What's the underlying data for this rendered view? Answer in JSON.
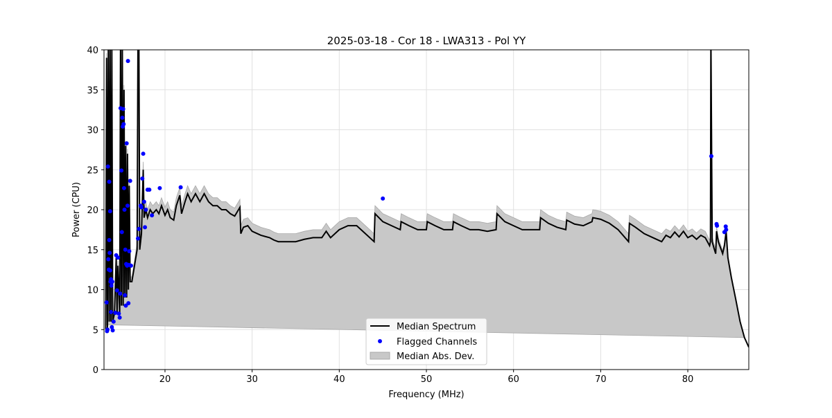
{
  "chart_data": {
    "type": "line",
    "title": "2025-03-18 - Cor 18 - LWA313 - Pol YY",
    "xlabel": "Frequency (MHz)",
    "ylabel": "Power (CPU)",
    "xlim": [
      13.0,
      87.0
    ],
    "ylim": [
      0,
      40
    ],
    "xticks": [
      20,
      30,
      40,
      50,
      60,
      70,
      80
    ],
    "yticks": [
      0,
      5,
      10,
      15,
      20,
      25,
      30,
      35,
      40
    ],
    "grid": true,
    "legend": {
      "placement": "bottom-center",
      "entries": [
        "Median Spectrum",
        "Flagged Channels",
        "Median Abs. Dev."
      ]
    },
    "colors": {
      "median": "#000000",
      "flagged": "#0000ff",
      "mad": "#c8c8c8"
    },
    "series": [
      {
        "name": "Median Spectrum",
        "freq": [
          13.2,
          13.3,
          13.4,
          13.5,
          13.6,
          13.7,
          13.8,
          13.9,
          14.0,
          14.2,
          14.4,
          14.5,
          14.6,
          14.8,
          14.9,
          15.0,
          15.1,
          15.2,
          15.3,
          15.4,
          15.5,
          15.6,
          15.7,
          15.8,
          15.9,
          16.0,
          16.2,
          16.5,
          16.8,
          16.9,
          17.0,
          17.1,
          17.3,
          17.5,
          17.6,
          17.8,
          18.0,
          18.3,
          18.6,
          19.0,
          19.3,
          19.6,
          20.0,
          20.3,
          20.6,
          21.0,
          21.3,
          21.7,
          21.9,
          22.3,
          22.6,
          23.0,
          23.5,
          24.0,
          24.5,
          25.0,
          25.5,
          26.0,
          26.5,
          27.0,
          27.5,
          28.0,
          28.6,
          28.7,
          29.0,
          29.5,
          30.0,
          31.0,
          32.0,
          32.5,
          33.0,
          34.0,
          35.0,
          36.0,
          37.0,
          38.0,
          38.5,
          39.0,
          40.0,
          41.0,
          42.0,
          43.0,
          44.0,
          44.1,
          45.0,
          46.0,
          47.0,
          47.1,
          48.0,
          49.0,
          50.0,
          50.1,
          51.0,
          52.0,
          53.0,
          53.1,
          54.0,
          55.0,
          56.0,
          57.0,
          58.0,
          58.1,
          59.0,
          60.0,
          61.0,
          62.0,
          63.0,
          63.1,
          64.0,
          65.0,
          66.0,
          66.1,
          67.0,
          68.0,
          69.0,
          69.1,
          70.0,
          71.0,
          72.0,
          73.2,
          73.3,
          74.0,
          75.0,
          76.0,
          77.0,
          77.5,
          78.0,
          78.5,
          79.0,
          79.5,
          80.0,
          80.5,
          81.0,
          81.5,
          82.0,
          82.5,
          82.6,
          82.65,
          82.8,
          83.0,
          83.2,
          83.3,
          83.5,
          84.0,
          84.2,
          84.4,
          84.6,
          85.0,
          85.5,
          86.0,
          86.5,
          87.0
        ],
        "median": [
          5,
          39,
          5,
          42,
          6,
          42,
          6,
          40,
          6,
          7,
          14,
          7,
          13,
          7,
          42,
          8,
          42,
          8,
          35,
          9,
          28,
          9,
          27,
          10,
          23,
          11,
          11,
          13,
          15,
          42,
          42,
          15,
          17,
          25,
          19,
          20,
          19,
          20,
          19.5,
          20,
          19.5,
          20.5,
          19.3,
          20,
          19,
          18.7,
          20.5,
          21.8,
          19.5,
          21,
          22,
          21,
          22,
          21,
          22,
          21,
          20.5,
          20.5,
          20,
          20,
          19.5,
          19.2,
          20.3,
          17,
          17.8,
          18,
          17.3,
          16.8,
          16.5,
          16.2,
          16,
          16,
          16,
          16.3,
          16.5,
          16.5,
          17.3,
          16.5,
          17.5,
          18,
          18,
          17,
          16,
          19.5,
          18.5,
          18,
          17.5,
          18.5,
          18,
          17.5,
          17.5,
          18.5,
          18,
          17.5,
          17.5,
          18.5,
          18,
          17.5,
          17.5,
          17.3,
          17.5,
          19.5,
          18.5,
          18,
          17.5,
          17.5,
          17.5,
          19,
          18.3,
          17.8,
          17.5,
          18.7,
          18.2,
          18,
          18.5,
          19,
          18.8,
          18.3,
          17.5,
          16,
          18.3,
          17.8,
          17,
          16.5,
          16,
          16.8,
          16.5,
          17.2,
          16.6,
          17.3,
          16.5,
          16.8,
          16.3,
          16.8,
          16.5,
          15.5,
          16,
          42,
          16,
          15.2,
          14.5,
          17.3,
          16,
          14.5,
          15.5,
          17.3,
          14,
          11.5,
          8.8,
          6,
          4,
          2.8
        ],
        "mad": [
          0.6,
          0.6,
          0.6,
          0.6,
          0.6,
          0.6,
          0.6,
          0.6,
          0.6,
          0.6,
          0.6,
          0.6,
          0.6,
          0.6,
          0.6,
          0.6,
          0.6,
          0.6,
          0.6,
          0.6,
          0.6,
          0.6,
          0.6,
          0.6,
          0.6,
          0.6,
          0.6,
          0.7,
          0.8,
          0.8,
          0.8,
          0.8,
          0.9,
          1,
          1,
          1,
          1,
          1,
          1,
          1,
          1,
          1,
          1,
          1,
          1,
          1,
          1,
          1,
          1,
          1,
          1,
          1,
          1,
          1,
          1,
          1,
          1,
          1,
          1,
          1,
          1,
          1,
          1,
          1,
          1,
          1,
          1,
          1,
          1,
          1,
          1,
          1,
          1,
          1,
          1,
          1,
          1,
          1,
          1,
          1,
          1,
          1,
          1,
          1,
          1,
          1,
          1,
          1,
          1,
          1,
          1,
          1,
          1,
          1,
          1,
          1,
          1,
          1,
          1,
          1,
          1,
          1,
          1,
          1,
          1,
          1,
          1,
          1,
          1,
          1,
          1,
          1,
          1,
          1,
          1,
          1,
          1,
          1,
          1,
          1,
          1,
          1,
          1,
          1,
          1,
          0.8,
          0.8,
          0.8,
          0.8,
          0.8,
          0.8,
          0.8,
          0.8,
          0.8,
          0.8,
          0.7,
          0.6,
          0.6,
          0.6,
          0.6,
          0.6,
          0.6,
          0.5,
          0.4,
          0.3,
          0.2,
          0.1,
          0,
          0,
          0,
          0
        ]
      },
      {
        "name": "Flagged Channels",
        "freq": [
          13.3,
          13.35,
          13.4,
          13.45,
          13.5,
          13.55,
          13.6,
          13.6,
          13.65,
          13.7,
          13.7,
          13.75,
          13.8,
          13.8,
          13.85,
          13.9,
          13.95,
          14.0,
          14.1,
          14.3,
          14.4,
          14.5,
          14.6,
          14.7,
          14.8,
          14.85,
          14.9,
          15.0,
          15.05,
          15.1,
          15.15,
          15.2,
          15.25,
          15.3,
          15.35,
          15.4,
          15.45,
          15.5,
          15.55,
          15.6,
          15.65,
          15.7,
          15.75,
          15.8,
          15.85,
          15.9,
          16.0,
          16.1,
          16.9,
          17.0,
          17.2,
          17.3,
          17.4,
          17.5,
          17.6,
          17.7,
          17.8,
          18.0,
          18.2,
          18.5,
          19.4,
          21.8,
          45.0,
          82.7,
          83.3,
          83.35,
          84.2,
          84.35,
          84.4
        ],
        "values": [
          8.4,
          4.8,
          5.0,
          25.4,
          13.8,
          12.5,
          23.5,
          16.2,
          14.6,
          19.8,
          12.4,
          11.0,
          11.3,
          7.2,
          10.5,
          5.3,
          11.0,
          4.9,
          6.0,
          7.1,
          14.3,
          9.9,
          14.0,
          7.0,
          6.5,
          9.5,
          32.7,
          24.9,
          17.2,
          31.5,
          30.4,
          32.6,
          30.7,
          22.7,
          20.0,
          9.3,
          15.0,
          8.0,
          13.2,
          28.3,
          13.0,
          20.5,
          38.6,
          8.3,
          13.1,
          14.8,
          23.6,
          13.0,
          16.4,
          17.6,
          20.5,
          20.3,
          23.9,
          27.0,
          21.0,
          17.8,
          20.0,
          22.5,
          22.5,
          19.3,
          22.7,
          22.8,
          21.4,
          26.7,
          18.2,
          18.0,
          17.2,
          17.9,
          17.5
        ]
      }
    ]
  }
}
